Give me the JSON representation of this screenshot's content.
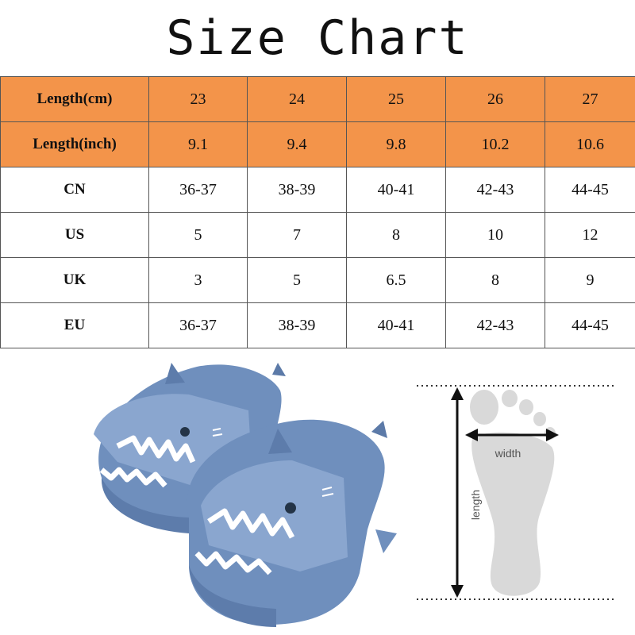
{
  "title": "Size Chart",
  "table": {
    "rows": [
      {
        "label": "Length(cm)",
        "cells": [
          "23",
          "24",
          "25",
          "26",
          "27"
        ],
        "highlight": true
      },
      {
        "label": "Length(inch)",
        "cells": [
          "9.1",
          "9.4",
          "9.8",
          "10.2",
          "10.6"
        ],
        "highlight": true
      },
      {
        "label": "CN",
        "cells": [
          "36-37",
          "38-39",
          "40-41",
          "42-43",
          "44-45"
        ],
        "highlight": false
      },
      {
        "label": "US",
        "cells": [
          "5",
          "7",
          "8",
          "10",
          "12"
        ],
        "highlight": false
      },
      {
        "label": "UK",
        "cells": [
          "3",
          "5",
          "6.5",
          "8",
          "9"
        ],
        "highlight": false
      },
      {
        "label": "EU",
        "cells": [
          "36-37",
          "38-39",
          "40-41",
          "42-43",
          "44-45"
        ],
        "highlight": false
      }
    ]
  },
  "foot_diagram": {
    "width_label": "width",
    "length_label": "length"
  },
  "colors": {
    "highlight_row": "#f3944a",
    "slipper": "#6f8fbd"
  },
  "icons": {
    "product": "shark-slippers-illustration",
    "measure": "foot-measurement-icon"
  }
}
